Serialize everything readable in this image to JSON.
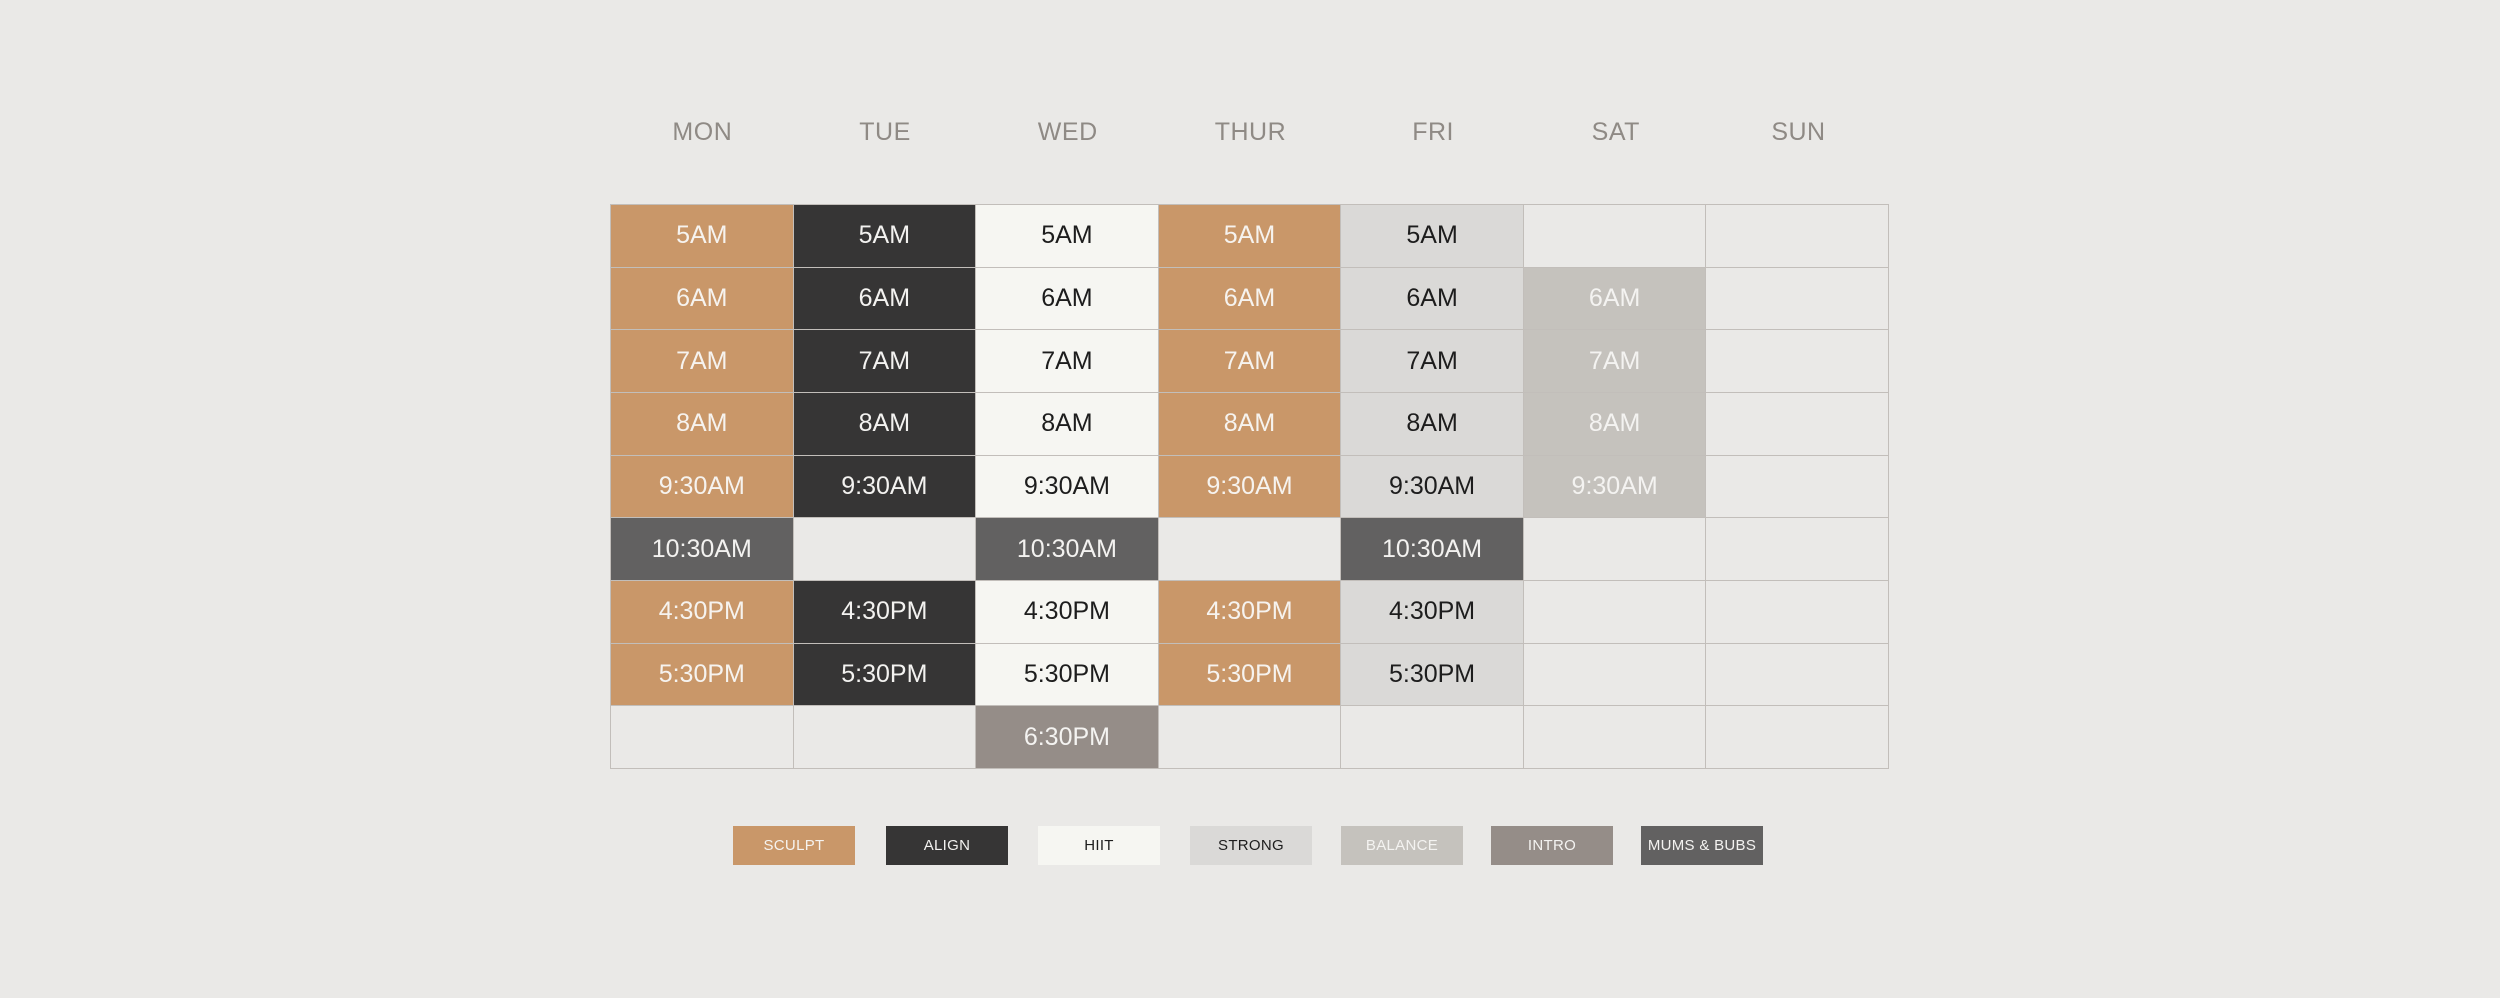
{
  "days": [
    "MON",
    "TUE",
    "WED",
    "THUR",
    "FRI",
    "SAT",
    "SUN"
  ],
  "class_styles": {
    "sculpt": {
      "bg": "#c99769",
      "fg": "#f6f3ef"
    },
    "align": {
      "bg": "#363535",
      "fg": "#f3f2f0"
    },
    "hiit": {
      "bg": "#f6f6f2",
      "fg": "#1d1d1d"
    },
    "strong": {
      "bg": "#dad9d7",
      "fg": "#1d1d1d"
    },
    "balance": {
      "bg": "#c5c2bd",
      "fg": "#f4f3f1"
    },
    "intro": {
      "bg": "#958d88",
      "fg": "#f4f3f1"
    },
    "mums": {
      "bg": "#626161",
      "fg": "#f3f2f0"
    }
  },
  "schedule": [
    [
      {
        "time": "5AM",
        "class": "sculpt"
      },
      {
        "time": "5AM",
        "class": "align"
      },
      {
        "time": "5AM",
        "class": "hiit"
      },
      {
        "time": "5AM",
        "class": "sculpt"
      },
      {
        "time": "5AM",
        "class": "strong"
      },
      null,
      null
    ],
    [
      {
        "time": "6AM",
        "class": "sculpt"
      },
      {
        "time": "6AM",
        "class": "align"
      },
      {
        "time": "6AM",
        "class": "hiit"
      },
      {
        "time": "6AM",
        "class": "sculpt"
      },
      {
        "time": "6AM",
        "class": "strong"
      },
      {
        "time": "6AM",
        "class": "balance"
      },
      null
    ],
    [
      {
        "time": "7AM",
        "class": "sculpt"
      },
      {
        "time": "7AM",
        "class": "align"
      },
      {
        "time": "7AM",
        "class": "hiit"
      },
      {
        "time": "7AM",
        "class": "sculpt"
      },
      {
        "time": "7AM",
        "class": "strong"
      },
      {
        "time": "7AM",
        "class": "balance"
      },
      null
    ],
    [
      {
        "time": "8AM",
        "class": "sculpt"
      },
      {
        "time": "8AM",
        "class": "align"
      },
      {
        "time": "8AM",
        "class": "hiit"
      },
      {
        "time": "8AM",
        "class": "sculpt"
      },
      {
        "time": "8AM",
        "class": "strong"
      },
      {
        "time": "8AM",
        "class": "balance"
      },
      null
    ],
    [
      {
        "time": "9:30AM",
        "class": "sculpt"
      },
      {
        "time": "9:30AM",
        "class": "align"
      },
      {
        "time": "9:30AM",
        "class": "hiit"
      },
      {
        "time": "9:30AM",
        "class": "sculpt"
      },
      {
        "time": "9:30AM",
        "class": "strong"
      },
      {
        "time": "9:30AM",
        "class": "balance"
      },
      null
    ],
    [
      {
        "time": "10:30AM",
        "class": "mums"
      },
      null,
      {
        "time": "10:30AM",
        "class": "mums"
      },
      null,
      {
        "time": "10:30AM",
        "class": "mums"
      },
      null,
      null
    ],
    [
      {
        "time": "4:30PM",
        "class": "sculpt"
      },
      {
        "time": "4:30PM",
        "class": "align"
      },
      {
        "time": "4:30PM",
        "class": "hiit"
      },
      {
        "time": "4:30PM",
        "class": "sculpt"
      },
      {
        "time": "4:30PM",
        "class": "strong"
      },
      null,
      null
    ],
    [
      {
        "time": "5:30PM",
        "class": "sculpt"
      },
      {
        "time": "5:30PM",
        "class": "align"
      },
      {
        "time": "5:30PM",
        "class": "hiit"
      },
      {
        "time": "5:30PM",
        "class": "sculpt"
      },
      {
        "time": "5:30PM",
        "class": "strong"
      },
      null,
      null
    ],
    [
      null,
      null,
      {
        "time": "6:30PM",
        "class": "intro"
      },
      null,
      null,
      null,
      null
    ]
  ],
  "legend": [
    {
      "label": "SCULPT",
      "class": "sculpt"
    },
    {
      "label": "ALIGN",
      "class": "align"
    },
    {
      "label": "HIIT",
      "class": "hiit"
    },
    {
      "label": "STRONG",
      "class": "strong"
    },
    {
      "label": "BALANCE",
      "class": "balance"
    },
    {
      "label": "INTRO",
      "class": "intro"
    },
    {
      "label": "MUMS & BUBS",
      "class": "mums"
    }
  ]
}
